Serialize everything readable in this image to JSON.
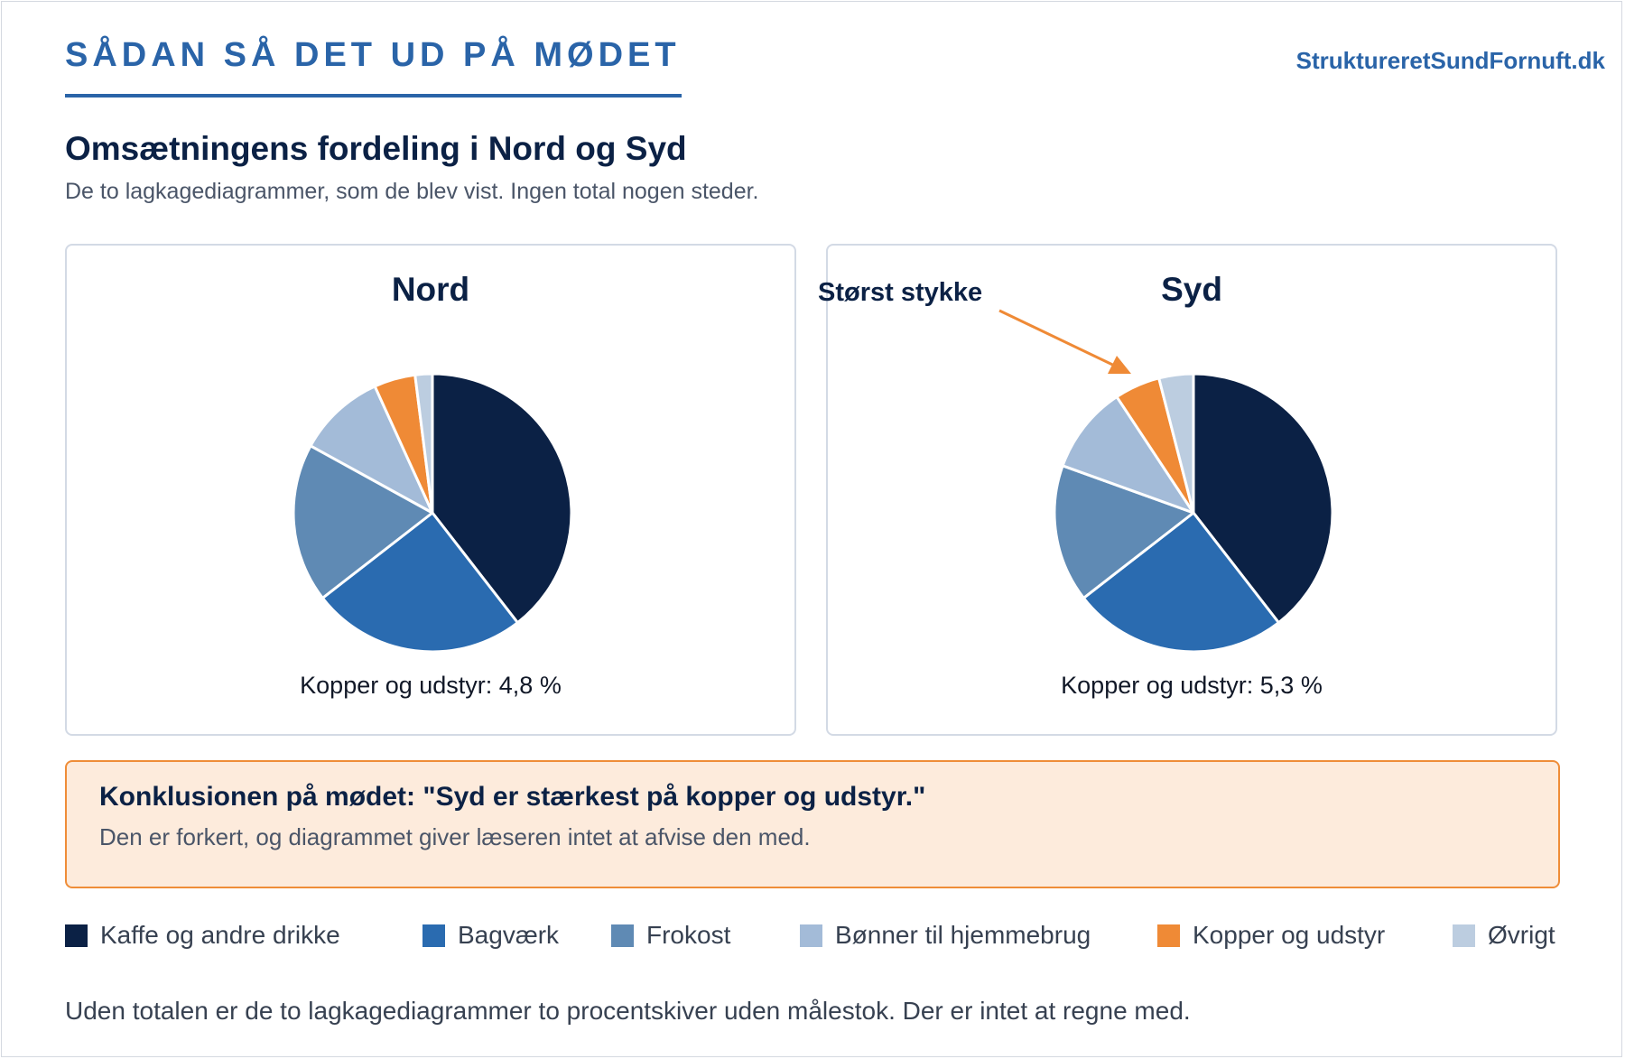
{
  "header": {
    "kicker": "SÅDAN SÅ DET UD PÅ MØDET",
    "site": "StruktureretSundFornuft.dk",
    "title": "Omsætningens fordeling i Nord og Syd",
    "subtitle": "De to lagkagediagrammer, som de blev vist. Ingen total nogen steder."
  },
  "colors": {
    "kaffe": "#0b2145",
    "bagvaerk": "#2a6bb0",
    "frokost": "#5f8ab4",
    "boenner": "#a3bbd8",
    "kopper": "#ef8a36",
    "oevrigt": "#bccde0"
  },
  "chart_data": [
    {
      "type": "pie",
      "title": "Nord",
      "categories": [
        "Kaffe og andre drikke",
        "Bagværk",
        "Frokost",
        "Bønner til hjemmebrug",
        "Kopper og udstyr",
        "Øvrigt"
      ],
      "values": [
        39.5,
        25.0,
        18.5,
        10.2,
        4.8,
        2.0
      ],
      "note": "Kopper og udstyr: 4,8 %"
    },
    {
      "type": "pie",
      "title": "Syd",
      "categories": [
        "Kaffe og andre drikke",
        "Bagværk",
        "Frokost",
        "Bønner til hjemmebrug",
        "Kopper og udstyr",
        "Øvrigt"
      ],
      "values": [
        39.5,
        25.0,
        16.0,
        10.2,
        5.3,
        4.0
      ],
      "note": "Kopper og udstyr: 5,3 %",
      "annotation": "Størst stykke"
    }
  ],
  "conclusion": {
    "head": "Konklusionen på mødet: \"Syd er stærkest på kopper og udstyr.\"",
    "body": "Den er forkert, og diagrammet giver læseren intet at afvise den med."
  },
  "legend": [
    {
      "label": "Kaffe og andre drikke",
      "color": "#0b2145"
    },
    {
      "label": "Bagværk",
      "color": "#2a6bb0"
    },
    {
      "label": "Frokost",
      "color": "#5f8ab4"
    },
    {
      "label": "Bønner til hjemmebrug",
      "color": "#a3bbd8"
    },
    {
      "label": "Kopper og udstyr",
      "color": "#ef8a36"
    },
    {
      "label": "Øvrigt",
      "color": "#bccde0"
    }
  ],
  "footer": "Uden totalen er de to lagkagediagrammer to procentskiver uden målestok. Der er intet at regne med."
}
